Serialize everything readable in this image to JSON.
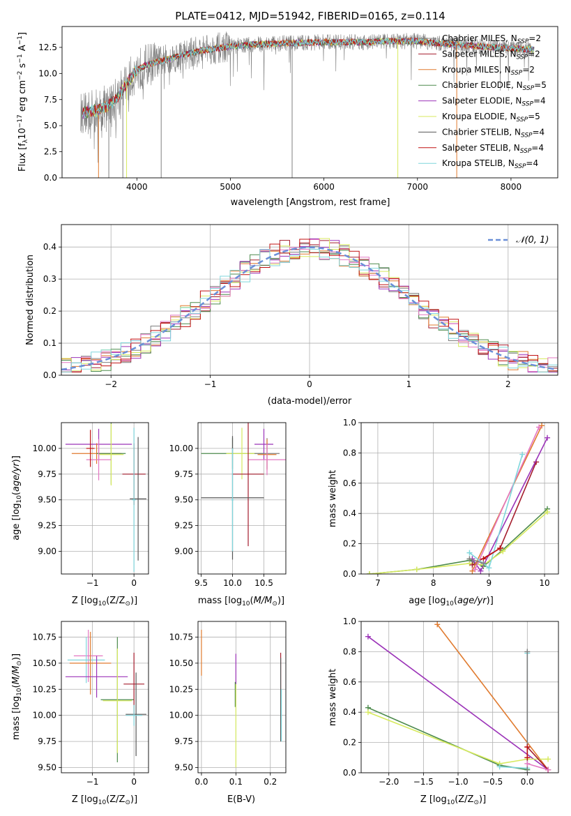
{
  "colors": {
    "chab_miles": "#7f7f7f",
    "salp_miles": "#a51d2d",
    "krou_miles": "#e07a2e",
    "chab_elodie": "#4c8a4c",
    "salp_elodie": "#9b33b8",
    "krou_elodie": "#d7ea5e",
    "chab_stelib": "#555555",
    "salp_stelib": "#c01010",
    "krou_stelib": "#7fd6dc",
    "pink": "#e377c2",
    "normal_curve": "#6a8fd8",
    "grid": "#b0b0b0"
  },
  "chart_data": [
    {
      "id": "spectrum",
      "type": "line",
      "title": "PLATE=0412, MJD=51942, FIBERID=0165, z=0.114",
      "xlabel": "wavelength [Angstrom, rest frame]",
      "ylabel": "Flux [f_λ 10^-17 erg cm^-2 s^-1 A^-1]",
      "xlim": [
        3200,
        8500
      ],
      "ylim": [
        0,
        14.5
      ],
      "xticks": [
        "4000",
        "5000",
        "6000",
        "7000",
        "8000"
      ],
      "yticks": [
        "0.0",
        "2.5",
        "5.0",
        "7.5",
        "10.0",
        "12.5"
      ],
      "continuum": {
        "x": [
          3400,
          3600,
          3700,
          3800,
          3900,
          4000,
          4100,
          4200,
          4300,
          4500,
          4700,
          5000,
          5300,
          5600,
          6000,
          6300,
          6500,
          6600,
          7000,
          7200,
          7500,
          8000,
          8250
        ],
        "y": [
          6.2,
          6.5,
          7.0,
          7.8,
          9.2,
          10.3,
          10.8,
          11.1,
          11.3,
          11.8,
          12.2,
          12.6,
          12.8,
          12.9,
          13.0,
          13.0,
          13.0,
          13.1,
          13.1,
          12.9,
          12.7,
          12.4,
          12.3
        ]
      },
      "series": [
        {
          "name": "Chabrier MILES, N_SSP=2",
          "color": "#7f7f7f"
        },
        {
          "name": "Salpeter MILES, N_SSP=2",
          "color": "#a51d2d"
        },
        {
          "name": "Kroupa MILES, N_SSP=2",
          "color": "#e07a2e"
        },
        {
          "name": "Chabrier ELODIE, N_SSP=5",
          "color": "#4c8a4c"
        },
        {
          "name": "Salpeter ELODIE, N_SSP=4",
          "color": "#9b33b8"
        },
        {
          "name": "Kroupa ELODIE, N_SSP=5",
          "color": "#d7ea5e"
        },
        {
          "name": "Chabrier STELIB, N_SSP=4",
          "color": "#555555"
        },
        {
          "name": "Salpeter STELIB, N_SSP=4",
          "color": "#c01010"
        },
        {
          "name": "Kroupa STELIB, N_SSP=4",
          "color": "#7fd6dc"
        }
      ],
      "legend": [
        {
          "pre": "Chabrier MILES, N",
          "sub": "SSP",
          "post": "=2",
          "color": "#7f7f7f"
        },
        {
          "pre": "Salpeter MILES, N",
          "sub": "SSP",
          "post": "=2",
          "color": "#a51d2d"
        },
        {
          "pre": "Kroupa MILES, N",
          "sub": "SSP",
          "post": "=2",
          "color": "#e07a2e"
        },
        {
          "pre": "Chabrier ELODIE, N",
          "sub": "SSP",
          "post": "=5",
          "color": "#4c8a4c"
        },
        {
          "pre": "Salpeter ELODIE, N",
          "sub": "SSP",
          "post": "=4",
          "color": "#9b33b8"
        },
        {
          "pre": "Kroupa ELODIE, N",
          "sub": "SSP",
          "post": "=5",
          "color": "#d7ea5e"
        },
        {
          "pre": "Chabrier STELIB, N",
          "sub": "SSP",
          "post": "=4",
          "color": "#555555"
        },
        {
          "pre": "Salpeter STELIB, N",
          "sub": "SSP",
          "post": "=4",
          "color": "#c01010"
        },
        {
          "pre": "Kroupa STELIB, N",
          "sub": "SSP",
          "post": "=4",
          "color": "#7fd6dc"
        }
      ],
      "legend_position": "upper right"
    },
    {
      "id": "residuals",
      "type": "line",
      "xlabel": "(data-model)/error",
      "ylabel": "Normed distribution",
      "xlim": [
        -2.5,
        2.5
      ],
      "ylim": [
        0,
        0.47
      ],
      "xticks": [
        "−2",
        "−1",
        "0",
        "1",
        "2"
      ],
      "yticks": [
        "0.0",
        "0.1",
        "0.2",
        "0.3",
        "0.4"
      ],
      "reference_curve": {
        "name": "N(0,1)",
        "legend_text": "𝒩(0, 1)",
        "mean": 0,
        "sigma": 1,
        "color": "#6a8fd8"
      },
      "histogram": {
        "bin_width": 0.1,
        "bin_start": -2.5,
        "values": [
          0.02,
          0.03,
          0.04,
          0.045,
          0.05,
          0.06,
          0.055,
          0.07,
          0.08,
          0.09,
          0.095,
          0.11,
          0.12,
          0.13,
          0.15,
          0.17,
          0.18,
          0.19,
          0.2,
          0.23,
          0.25,
          0.27,
          0.28,
          0.31,
          0.3,
          0.32,
          0.34,
          0.33,
          0.36,
          0.35,
          0.37,
          0.36,
          0.38,
          0.39,
          0.37,
          0.38,
          0.39,
          0.38,
          0.37,
          0.36,
          0.34,
          0.33,
          0.3,
          0.28,
          0.27,
          0.25,
          0.22,
          0.21,
          0.19,
          0.17
        ],
        "series_colors": [
          "#7f7f7f",
          "#a51d2d",
          "#e07a2e",
          "#4c8a4c",
          "#9b33b8",
          "#d7ea5e",
          "#e377c2",
          "#c01010",
          "#7fd6dc"
        ]
      }
    },
    {
      "id": "age_vs_Z",
      "type": "scatter",
      "xlabel": "Z [log10(Z/Z⊙)]",
      "ylabel": "age [log10(age/yr)]",
      "xlim": [
        -1.75,
        0.35
      ],
      "ylim": [
        8.78,
        10.25
      ],
      "xticks": [
        "−1",
        "0"
      ],
      "yticks": [
        "9.00",
        "9.25",
        "9.50",
        "9.75",
        "10.00"
      ],
      "points": [
        {
          "x": -0.85,
          "y": 10.04,
          "xerr": 0.8,
          "yerr": 0.15,
          "color": "#9b33b8"
        },
        {
          "x": -0.9,
          "y": 9.95,
          "xerr": 0.6,
          "yerr": 0.1,
          "color": "#e07a2e"
        },
        {
          "x": -0.55,
          "y": 9.95,
          "xerr": 0.35,
          "yerr": 0.3,
          "color": "#4c8a4c"
        },
        {
          "x": -0.55,
          "y": 9.94,
          "xerr": 0.3,
          "yerr": 0.3,
          "color": "#d7ea5e"
        },
        {
          "x": -0.85,
          "y": 9.89,
          "xerr": 0.3,
          "yerr": 0.2,
          "color": "#e377c2"
        },
        {
          "x": -1.05,
          "y": 10.0,
          "xerr": 0.1,
          "yerr": 0.18,
          "color": "#c01010"
        },
        {
          "x": 0.0,
          "y": 9.75,
          "xerr": 0.28,
          "yerr": 0.3,
          "color": "#a51d2d"
        },
        {
          "x": 0.1,
          "y": 9.51,
          "xerr": 0.2,
          "yerr": 0.6,
          "color": "#555555"
        },
        {
          "x": 0.0,
          "y": 9.5,
          "xerr": 0.05,
          "yerr": 0.7,
          "color": "#7fd6dc"
        }
      ]
    },
    {
      "id": "age_vs_mass",
      "type": "scatter",
      "xlabel": "mass [log10(M/M⊙)]",
      "xlim": [
        9.45,
        10.85
      ],
      "ylim": [
        8.78,
        10.25
      ],
      "xticks": [
        "9.5",
        "10.0",
        "10.5"
      ],
      "yticks": [
        "9.00",
        "9.25",
        "9.50",
        "9.75",
        "10.00"
      ],
      "points": [
        {
          "x": 10.0,
          "y": 9.95,
          "xerr": 0.5,
          "yerr": 0.15,
          "color": "#4c8a4c"
        },
        {
          "x": 10.15,
          "y": 9.95,
          "xerr": 0.25,
          "yerr": 0.25,
          "color": "#d7ea5e"
        },
        {
          "x": 10.5,
          "y": 10.04,
          "xerr": 0.15,
          "yerr": 0.15,
          "color": "#9b33b8"
        },
        {
          "x": 10.55,
          "y": 9.95,
          "xerr": 0.2,
          "yerr": 0.15,
          "color": "#7f7f7f"
        },
        {
          "x": 10.55,
          "y": 9.94,
          "xerr": 0.15,
          "yerr": 0.15,
          "color": "#e07a2e"
        },
        {
          "x": 10.55,
          "y": 9.89,
          "xerr": 0.3,
          "yerr": 0.15,
          "color": "#e377c2"
        },
        {
          "x": 10.25,
          "y": 9.75,
          "xerr": 0.25,
          "yerr": 0.7,
          "color": "#a51d2d"
        },
        {
          "x": 10.0,
          "y": 9.52,
          "xerr": 0.5,
          "yerr": 0.6,
          "color": "#555555"
        },
        {
          "x": 10.0,
          "y": 9.5,
          "xerr": 0.02,
          "yerr": 0.5,
          "color": "#7fd6dc"
        }
      ]
    },
    {
      "id": "weight_vs_age",
      "type": "line",
      "xlabel": "age [log10(age/yr)]",
      "ylabel": "mass weight",
      "xlim": [
        6.7,
        10.25
      ],
      "ylim": [
        0,
        1
      ],
      "xticks": [
        "7",
        "8",
        "9",
        "10"
      ],
      "yticks": [
        "0.0",
        "0.2",
        "0.4",
        "0.6",
        "0.8",
        "1.0"
      ],
      "series": [
        {
          "color": "#4c8a4c",
          "x": [
            6.85,
            7.7,
            8.65,
            8.9,
            9.25,
            10.05
          ],
          "y": [
            0.0,
            0.03,
            0.09,
            0.05,
            0.16,
            0.43
          ]
        },
        {
          "color": "#d7ea5e",
          "x": [
            6.85,
            7.7,
            8.65,
            8.9,
            9.25,
            10.05
          ],
          "y": [
            0.0,
            0.03,
            0.07,
            0.06,
            0.15,
            0.41
          ]
        },
        {
          "color": "#a51d2d",
          "x": [
            8.7,
            9.2,
            9.85
          ],
          "y": [
            0.06,
            0.17,
            0.74
          ]
        },
        {
          "color": "#9b33b8",
          "x": [
            8.7,
            8.85,
            10.05
          ],
          "y": [
            0.1,
            0.02,
            0.9
          ]
        },
        {
          "color": "#e07a2e",
          "x": [
            8.7,
            9.95
          ],
          "y": [
            0.02,
            0.98
          ]
        },
        {
          "color": "#e377c2",
          "x": [
            8.75,
            9.9
          ],
          "y": [
            0.03,
            0.97
          ]
        },
        {
          "color": "#7fd6dc",
          "x": [
            8.65,
            9.0,
            9.6
          ],
          "y": [
            0.14,
            0.04,
            0.79
          ]
        },
        {
          "color": "#c01010",
          "x": [
            8.9,
            9.2
          ],
          "y": [
            0.1,
            0.17
          ]
        },
        {
          "color": "#7f7f7f",
          "x": [
            8.65,
            8.9
          ],
          "y": [
            0.1,
            0.07
          ]
        }
      ]
    },
    {
      "id": "mass_vs_Z",
      "type": "scatter",
      "xlabel": "Z [log10(Z/Z⊙)]",
      "ylabel": "mass [log10(M/M⊙)]",
      "xlim": [
        -1.75,
        0.35
      ],
      "ylim": [
        9.45,
        10.9
      ],
      "xticks": [
        "−1",
        "0"
      ],
      "yticks": [
        "9.50",
        "9.75",
        "10.00",
        "10.25",
        "10.50",
        "10.75"
      ],
      "points": [
        {
          "x": -1.1,
          "y": 10.57,
          "xerr": 0.35,
          "yerr": 0.25,
          "color": "#e377c2"
        },
        {
          "x": -1.15,
          "y": 10.53,
          "xerr": 0.45,
          "yerr": 0.22,
          "color": "#7fd6dc"
        },
        {
          "x": -1.05,
          "y": 10.5,
          "xerr": 0.5,
          "yerr": 0.3,
          "color": "#e07a2e"
        },
        {
          "x": -0.9,
          "y": 10.37,
          "xerr": 0.75,
          "yerr": 0.2,
          "color": "#9b33b8"
        },
        {
          "x": -0.4,
          "y": 10.15,
          "xerr": 0.4,
          "yerr": 0.6,
          "color": "#4c8a4c"
        },
        {
          "x": -0.4,
          "y": 10.14,
          "xerr": 0.35,
          "yerr": 0.5,
          "color": "#d7ea5e"
        },
        {
          "x": 0.0,
          "y": 10.3,
          "xerr": 0.25,
          "yerr": 0.3,
          "color": "#a51d2d"
        },
        {
          "x": 0.05,
          "y": 10.01,
          "xerr": 0.25,
          "yerr": 0.4,
          "color": "#555555"
        },
        {
          "x": 0.0,
          "y": 10.0,
          "xerr": 0.2,
          "yerr": 0.1,
          "color": "#7fd6dc"
        }
      ]
    },
    {
      "id": "mass_vs_ebv",
      "type": "scatter",
      "xlabel": "E(B-V)",
      "xlim": [
        -0.01,
        0.245
      ],
      "ylim": [
        9.45,
        10.9
      ],
      "xticks": [
        "0.0",
        "0.1",
        "0.2"
      ],
      "yticks": [
        "9.50",
        "9.75",
        "10.00",
        "10.25",
        "10.50",
        "10.75"
      ],
      "points": [
        {
          "x": 0.0,
          "y": 10.6,
          "xerr": 0.0,
          "yerr": 0.22,
          "color": "#e07a2e"
        },
        {
          "x": 0.1,
          "y": 10.34,
          "xerr": 0.0,
          "yerr": 0.25,
          "color": "#9b33b8"
        },
        {
          "x": 0.098,
          "y": 10.2,
          "xerr": 0.0,
          "yerr": 0.12,
          "color": "#4c8a4c"
        },
        {
          "x": 0.1,
          "y": 9.9,
          "xerr": 0.0,
          "yerr": 0.4,
          "color": "#d7ea5e"
        },
        {
          "x": 0.23,
          "y": 10.3,
          "xerr": 0.0,
          "yerr": 0.3,
          "color": "#a51d2d"
        },
        {
          "x": 0.23,
          "y": 10.15,
          "xerr": 0.0,
          "yerr": 0.4,
          "color": "#555555"
        },
        {
          "x": 0.232,
          "y": 10.0,
          "xerr": 0.0,
          "yerr": 0.25,
          "color": "#7fd6dc"
        }
      ]
    },
    {
      "id": "weight_vs_Z",
      "type": "line",
      "xlabel": "Z [log10(Z/Z⊙)]",
      "ylabel": "mass weight",
      "xlim": [
        -2.4,
        0.45
      ],
      "ylim": [
        0,
        1
      ],
      "xticks": [
        "−2.0",
        "−1.5",
        "−1.0",
        "−0.5",
        "0.0"
      ],
      "yticks": [
        "0.0",
        "0.2",
        "0.4",
        "0.6",
        "0.8",
        "1.0"
      ],
      "series": [
        {
          "color": "#9b33b8",
          "x": [
            -2.3,
            0.3
          ],
          "y": [
            0.9,
            0.02
          ]
        },
        {
          "color": "#e07a2e",
          "x": [
            -1.3,
            0.3
          ],
          "y": [
            0.98,
            0.02
          ]
        },
        {
          "color": "#4c8a4c",
          "x": [
            -2.3,
            -0.4,
            0.0
          ],
          "y": [
            0.43,
            0.05,
            0.02
          ]
        },
        {
          "color": "#d7ea5e",
          "x": [
            -2.3,
            -0.4,
            0.0,
            0.3
          ],
          "y": [
            0.4,
            0.06,
            0.09,
            0.09
          ]
        },
        {
          "color": "#7fd6dc",
          "x": [
            -0.4,
            0.0,
            0.0
          ],
          "y": [
            0.04,
            0.03,
            0.79
          ]
        },
        {
          "color": "#7f7f7f",
          "x": [
            0.0,
            0.0
          ],
          "y": [
            0.0,
            0.8
          ]
        },
        {
          "color": "#a51d2d",
          "x": [
            0.0,
            0.3
          ],
          "y": [
            0.17,
            0.02
          ]
        },
        {
          "color": "#c01010",
          "x": [
            0.0,
            0.0
          ],
          "y": [
            0.1,
            0.17
          ]
        },
        {
          "color": "#e377c2",
          "x": [
            0.0,
            0.3
          ],
          "y": [
            0.06,
            0.02
          ]
        }
      ]
    }
  ]
}
